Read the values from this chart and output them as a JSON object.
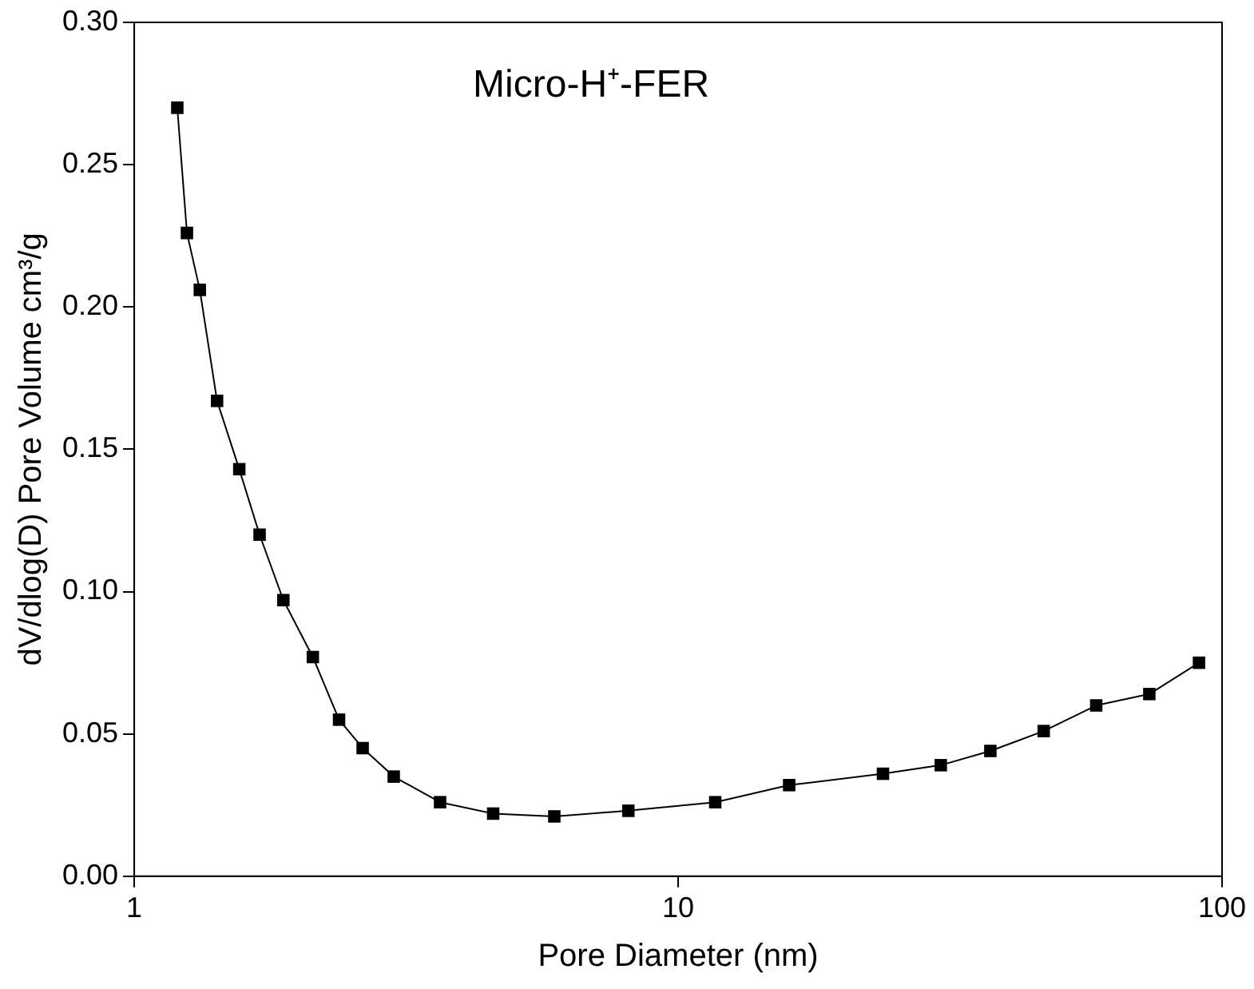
{
  "chart_data": {
    "type": "line",
    "title": "Micro-H⁺-FER",
    "xlabel": "Pore Diameter (nm)",
    "ylabel": "dV/dlog(D) Pore Volume cm³/g",
    "x": [
      1.2,
      1.25,
      1.32,
      1.42,
      1.56,
      1.7,
      1.88,
      2.13,
      2.38,
      2.63,
      3.0,
      3.65,
      4.57,
      5.92,
      8.1,
      11.7,
      16,
      23.8,
      30.4,
      37.5,
      47,
      58.7,
      73.5,
      90.7
    ],
    "series": [
      {
        "color": "#000000",
        "values": [
          0.27,
          0.226,
          0.206,
          0.167,
          0.143,
          0.12,
          0.097,
          0.077,
          0.055,
          0.045,
          0.035,
          0.026,
          0.022,
          0.021,
          0.023,
          0.026,
          0.032,
          0.036,
          0.039,
          0.044,
          0.051,
          0.06,
          0.064,
          0.075
        ]
      }
    ],
    "log": "x",
    "xlim": [
      1,
      100
    ],
    "xticks": [
      1,
      10,
      100
    ],
    "ylim": [
      0,
      0.3
    ],
    "yticks": [
      {
        "value": 0,
        "label": "0.00"
      },
      {
        "value": 0.05,
        "label": "0.05"
      },
      {
        "value": 0.1,
        "label": "0.10"
      },
      {
        "value": 0.15,
        "label": "0.15"
      },
      {
        "value": 0.2,
        "label": "0.20"
      },
      {
        "value": 0.25,
        "label": "0.25"
      },
      {
        "value": 0.3,
        "label": "0.30"
      }
    ],
    "grid": false,
    "legend": false,
    "marker": "square",
    "line_style": "solid"
  }
}
